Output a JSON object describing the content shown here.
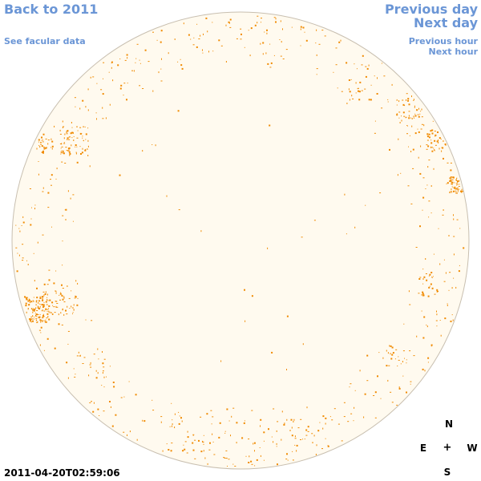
{
  "nav": {
    "back_label": "Back to 2011",
    "facular_label": "See facular data",
    "prev_day_label": "Previous day",
    "next_day_label": "Next day",
    "prev_hour_label": "Previous hour",
    "next_hour_label": "Next hour"
  },
  "timestamp": "2011-04-20T02:59:06",
  "compass": {
    "north": "N",
    "south": "S",
    "east": "E",
    "west": "W",
    "center": "+"
  },
  "colors": {
    "link": "#6b96d6",
    "disk_fill": "#fffaef",
    "disk_outline": "#c8bfb0",
    "facula": "#f08a00"
  }
}
